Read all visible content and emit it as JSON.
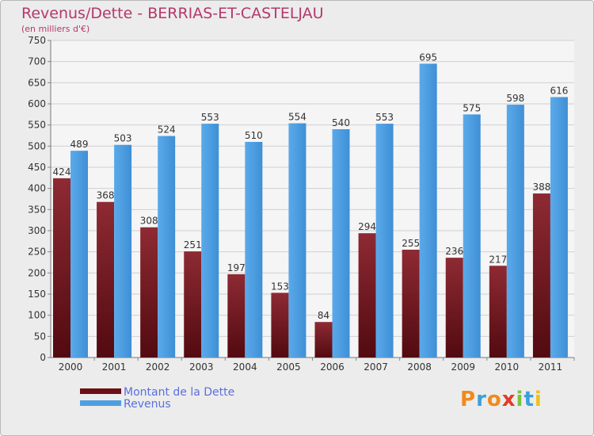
{
  "chart_data": {
    "type": "bar",
    "title": "Revenus/Dette - BERRIAS-ET-CASTELJAU",
    "subtitle": "(en milliers d'€)",
    "categories": [
      "2000",
      "2001",
      "2002",
      "2003",
      "2004",
      "2005",
      "2006",
      "2007",
      "2008",
      "2009",
      "2010",
      "2011"
    ],
    "series": [
      {
        "name": "Montant de la Dette",
        "color": "#7a1a22",
        "values": [
          424,
          368,
          308,
          251,
          197,
          153,
          84,
          294,
          255,
          236,
          217,
          388
        ]
      },
      {
        "name": "Revenus",
        "color": "#4f9fe0",
        "values": [
          489,
          503,
          524,
          553,
          510,
          554,
          540,
          553,
          695,
          575,
          598,
          616
        ]
      }
    ],
    "ylim": [
      0,
      750
    ],
    "yticks": [
      0,
      50,
      100,
      150,
      200,
      250,
      300,
      350,
      400,
      450,
      500,
      550,
      600,
      650,
      700,
      750
    ],
    "grid": true,
    "legend": "bottom-left"
  },
  "logo": {
    "text": "Proxiti"
  }
}
